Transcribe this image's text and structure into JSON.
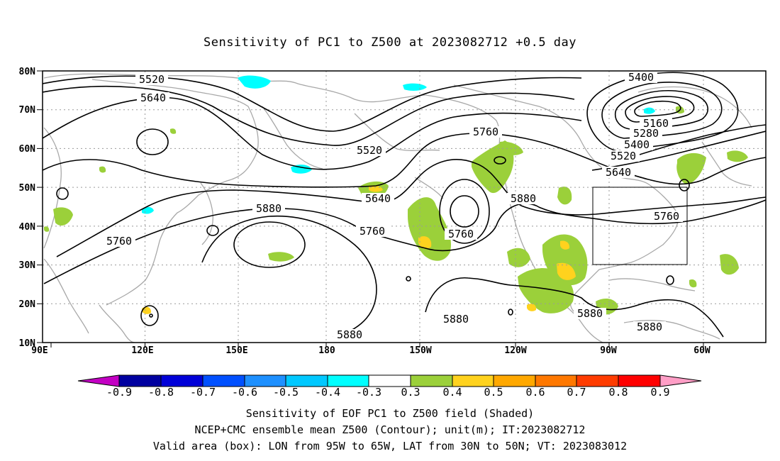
{
  "title": "Sensitivity of PC1 to Z500 at 2023082712 +0.5 day",
  "map": {
    "lat_ticks": [
      "10N",
      "20N",
      "30N",
      "40N",
      "50N",
      "60N",
      "70N",
      "80N"
    ],
    "lon_ticks": [
      "90E",
      "120E",
      "150E",
      "180",
      "150W",
      "120W",
      "90W",
      "60W"
    ],
    "contour_labels": [
      "5520",
      "5640",
      "5520",
      "5760",
      "5400",
      "5160",
      "5280",
      "5400",
      "5520",
      "5640",
      "5880",
      "5640",
      "5760",
      "5760",
      "5760",
      "5880",
      "5880",
      "5880",
      "5880",
      "5880",
      "5760"
    ],
    "valid_box": {
      "lon_from": "95W",
      "lon_to": "65W",
      "lat_from": "30N",
      "lat_to": "50N"
    }
  },
  "colorbar": {
    "labels": [
      "-0.9",
      "-0.8",
      "-0.7",
      "-0.6",
      "-0.5",
      "-0.4",
      "-0.3",
      "0.3",
      "0.4",
      "0.5",
      "0.6",
      "0.7",
      "0.8",
      "0.9"
    ],
    "colors": [
      "#c300c3",
      "#0000a0",
      "#0000d8",
      "#0050ff",
      "#1e90ff",
      "#00c8ff",
      "#00ffff",
      "#ffffff",
      "#9bd03a",
      "#ffd21e",
      "#ffa800",
      "#ff7800",
      "#ff3c00",
      "#ff0000",
      "#ff9ec6"
    ]
  },
  "footer": {
    "line1": "Sensitivity of EOF PC1 to Z500 field (Shaded)",
    "line2": "NCEP+CMC ensemble mean Z500 (Contour); unit(m); IT:2023082712",
    "line3": "Valid area (box): LON from 95W to 65W, LAT from 30N to 50N; VT: 2023083012"
  }
}
